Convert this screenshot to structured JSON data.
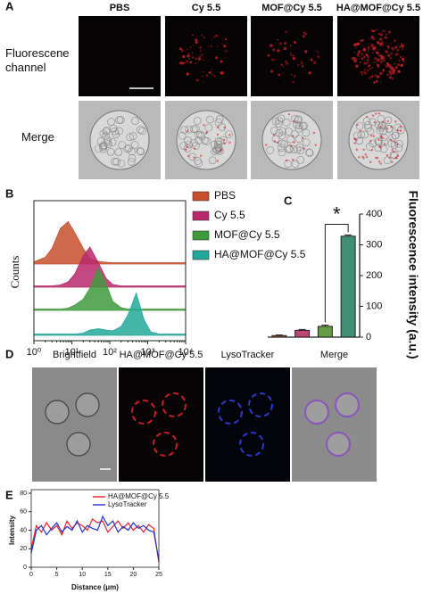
{
  "panel_a": {
    "label": "A",
    "columns": [
      "PBS",
      "Cy 5.5",
      "MOF@Cy 5.5",
      "HA@MOF@Cy 5.5"
    ],
    "rows": [
      "Fluorescene channel",
      "Merge"
    ]
  },
  "panel_d": {
    "label": "D",
    "columns": [
      "Brightfield",
      "HA@MOF@Cy 5.5",
      "LysoTracker",
      "Merge"
    ]
  },
  "chart_data": [
    {
      "panel_label": "B",
      "type": "area",
      "y_label": "Counts",
      "log_x": true,
      "legend": "right",
      "xlim": [
        1,
        10000
      ],
      "xticks": [
        {
          "value": 1,
          "label": "10⁰"
        },
        {
          "value": 10,
          "label": "10¹"
        },
        {
          "value": 100,
          "label": "10²"
        },
        {
          "value": 1000,
          "label": "10³"
        },
        {
          "value": 10000,
          "label": "10⁴"
        }
      ],
      "x": [
        1,
        2,
        3,
        5,
        8,
        12,
        20,
        30,
        50,
        80,
        120,
        200,
        300,
        500,
        800,
        1200,
        2000,
        10000
      ],
      "series": [
        {
          "name": "PBS",
          "color": "#c8502e",
          "values": [
            5,
            15,
            35,
            80,
            95,
            70,
            35,
            12,
            6,
            4,
            3,
            3,
            3,
            3,
            3,
            3,
            3,
            3
          ]
        },
        {
          "name": "Cy 5.5",
          "color": "#b8286a",
          "values": [
            3,
            3,
            3,
            5,
            12,
            30,
            70,
            90,
            55,
            20,
            6,
            3,
            3,
            3,
            3,
            3,
            3,
            3
          ]
        },
        {
          "name": "MOF@Cy 5.5",
          "color": "#3f9a3c",
          "values": [
            3,
            3,
            3,
            3,
            5,
            12,
            25,
            50,
            95,
            60,
            20,
            6,
            3,
            3,
            3,
            3,
            3,
            3
          ]
        },
        {
          "name": "HA@MOF@Cy 5.5",
          "color": "#22a89a",
          "values": [
            3,
            3,
            3,
            3,
            3,
            3,
            5,
            12,
            15,
            12,
            10,
            20,
            45,
            95,
            35,
            8,
            3,
            3
          ]
        }
      ]
    },
    {
      "panel_label": "C",
      "type": "bar",
      "y_label": "Fluorescence intensity (a.u.)",
      "y_axis_side": "right",
      "categories": [
        null,
        null,
        null,
        null
      ],
      "values": [
        5,
        22,
        35,
        328
      ],
      "errors": [
        2,
        3,
        4,
        4
      ],
      "colors": [
        "#b5451b",
        "#b0245a",
        "#4a8a24",
        "#1f7a5c"
      ],
      "ylim": [
        0,
        400
      ],
      "yticks": [
        0,
        100,
        200,
        300,
        400
      ],
      "annotation": "*"
    },
    {
      "panel_label": "E",
      "type": "line",
      "x_label": "Distance (μm)",
      "y_label": "Intensity",
      "legend": "top-right",
      "x": [
        0,
        1,
        2,
        3,
        4,
        5,
        6,
        7,
        8,
        9,
        10,
        11,
        12,
        13,
        14,
        15,
        16,
        17,
        18,
        19,
        20,
        21,
        22,
        23,
        24,
        25
      ],
      "xlim": [
        0,
        25
      ],
      "xticks": [
        0,
        5,
        10,
        15,
        20,
        25
      ],
      "ylim": [
        0,
        80
      ],
      "yticks": [
        0,
        20,
        40,
        60,
        80
      ],
      "series": [
        {
          "name": "HA@MOF@Cy 5.5",
          "color": "#e8202a",
          "values": [
            20,
            45,
            38,
            48,
            40,
            45,
            35,
            50,
            42,
            48,
            45,
            40,
            52,
            48,
            50,
            38,
            44,
            50,
            42,
            48,
            40,
            45,
            38,
            46,
            42,
            5
          ]
        },
        {
          "name": "LysoTracker",
          "color": "#2432c8",
          "values": [
            15,
            40,
            45,
            35,
            42,
            48,
            38,
            44,
            40,
            50,
            38,
            45,
            42,
            40,
            55,
            45,
            50,
            38,
            44,
            40,
            48,
            42,
            45,
            40,
            38,
            8
          ]
        }
      ]
    }
  ]
}
